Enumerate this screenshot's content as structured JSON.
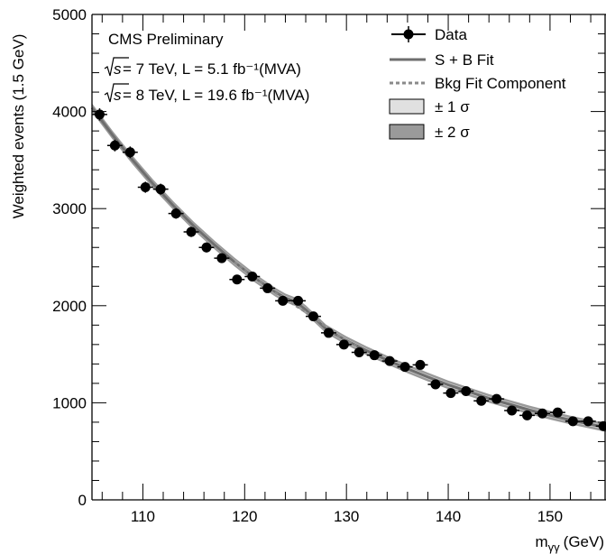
{
  "chart_data": {
    "type": "scatter",
    "title": "",
    "xlabel": "m",
    "xlabel_sub": "γγ",
    "xlabel_unit": "(GeV)",
    "ylabel": "Weighted events (1.5 GeV)",
    "xlim": [
      105,
      155.5
    ],
    "ylim": [
      0,
      5000
    ],
    "x_ticks": [
      110,
      120,
      130,
      140,
      150
    ],
    "y_ticks": [
      0,
      1000,
      2000,
      3000,
      4000,
      5000
    ],
    "grid": false,
    "legend_position": "top-right",
    "annotations": {
      "cms": "CMS Preliminary",
      "line1_prefix": "√s",
      "line1": " = 7 TeV, L = 5.1 fb⁻¹(MVA)",
      "line2_prefix": "√s",
      "line2": " = 8 TeV, L = 19.6 fb⁻¹(MVA)"
    },
    "legend": {
      "data": "Data",
      "sb_fit": "S + B Fit",
      "bkg": "Bkg Fit Component",
      "one_sigma": "± 1 σ",
      "two_sigma": "± 2 σ"
    },
    "colors": {
      "data": "#000000",
      "fit": "#6e6e6e",
      "bkg": "#8a8a8a",
      "one_sigma": "#e0e0e0",
      "two_sigma": "#9a9a9a"
    },
    "series": [
      {
        "name": "Data",
        "x_err": 0.75,
        "points": [
          [
            105.75,
            3970
          ],
          [
            107.25,
            3650
          ],
          [
            108.75,
            3580
          ],
          [
            110.25,
            3220
          ],
          [
            111.75,
            3200
          ],
          [
            113.25,
            2950
          ],
          [
            114.75,
            2760
          ],
          [
            116.25,
            2600
          ],
          [
            117.75,
            2490
          ],
          [
            119.25,
            2270
          ],
          [
            120.75,
            2300
          ],
          [
            122.25,
            2180
          ],
          [
            123.75,
            2050
          ],
          [
            125.25,
            2050
          ],
          [
            126.75,
            1890
          ],
          [
            128.25,
            1720
          ],
          [
            129.75,
            1600
          ],
          [
            131.25,
            1520
          ],
          [
            132.75,
            1490
          ],
          [
            134.25,
            1430
          ],
          [
            135.75,
            1370
          ],
          [
            137.25,
            1390
          ],
          [
            138.75,
            1190
          ],
          [
            140.25,
            1100
          ],
          [
            141.75,
            1120
          ],
          [
            143.25,
            1020
          ],
          [
            144.75,
            1040
          ],
          [
            146.25,
            920
          ],
          [
            147.75,
            870
          ],
          [
            149.25,
            890
          ],
          [
            150.75,
            900
          ],
          [
            152.25,
            810
          ],
          [
            153.75,
            810
          ],
          [
            155.25,
            760
          ]
        ]
      },
      {
        "name": "S + B Fit",
        "points": [
          [
            105,
            4040
          ],
          [
            107,
            3760
          ],
          [
            109,
            3500
          ],
          [
            111,
            3255
          ],
          [
            113,
            3030
          ],
          [
            115,
            2820
          ],
          [
            117,
            2630
          ],
          [
            119,
            2450
          ],
          [
            121,
            2285
          ],
          [
            123,
            2140
          ],
          [
            124,
            2080
          ],
          [
            125,
            2040
          ],
          [
            126,
            1960
          ],
          [
            127,
            1860
          ],
          [
            128,
            1760
          ],
          [
            130,
            1640
          ],
          [
            132,
            1535
          ],
          [
            134,
            1440
          ],
          [
            136,
            1350
          ],
          [
            138,
            1265
          ],
          [
            140,
            1185
          ],
          [
            142,
            1115
          ],
          [
            144,
            1045
          ],
          [
            146,
            985
          ],
          [
            148,
            925
          ],
          [
            150,
            872
          ],
          [
            152,
            822
          ],
          [
            154,
            778
          ],
          [
            155.5,
            745
          ]
        ]
      },
      {
        "name": "Bkg Fit Component",
        "points": [
          [
            119,
            2450
          ],
          [
            121,
            2285
          ],
          [
            123,
            2135
          ],
          [
            125,
            2000
          ],
          [
            127,
            1865
          ],
          [
            129,
            1700
          ],
          [
            131,
            1585
          ]
        ]
      }
    ]
  }
}
